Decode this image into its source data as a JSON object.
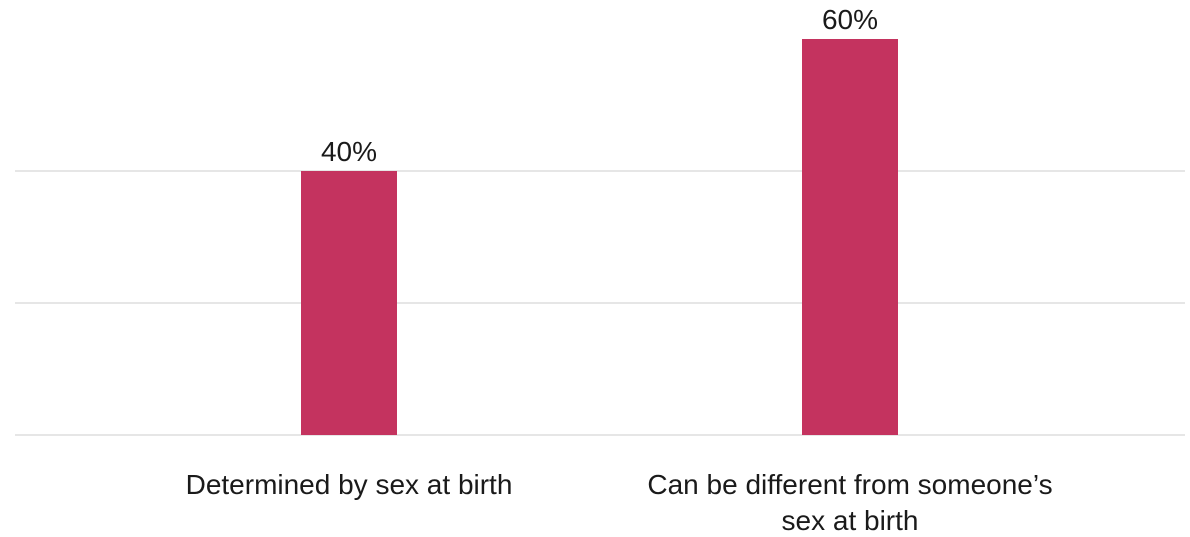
{
  "chart_data": {
    "type": "bar",
    "categories": [
      "Determined by sex at birth",
      "Can be different from someone’s sex at birth"
    ],
    "category_lines": [
      [
        "Determined by sex at birth"
      ],
      [
        "Can be different from someone’s",
        "sex at birth"
      ]
    ],
    "values": [
      40,
      60
    ],
    "value_labels": [
      "40%",
      "60%"
    ],
    "ylim": [
      0,
      60
    ],
    "gridline_values": [
      0,
      20,
      40
    ],
    "grid": true,
    "bar_color": "#c4335f",
    "title": "",
    "xlabel": "",
    "ylabel": ""
  }
}
